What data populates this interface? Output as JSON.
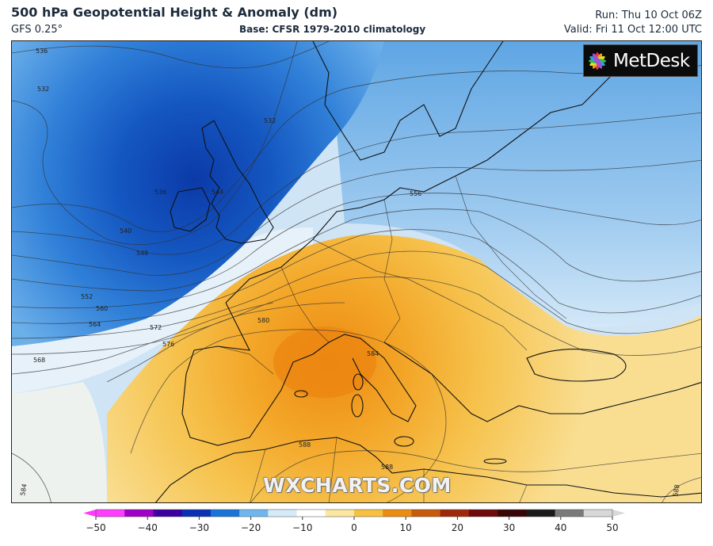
{
  "header": {
    "title": "500 hPa Geopotential Height & Anomaly (dm)",
    "model": "GFS 0.25°",
    "base": "Base: CFSR 1979-2010 climatology",
    "run": "Run: Thu 10 Oct 06Z",
    "valid": "Valid: Fri 11 Oct 12:00 UTC"
  },
  "logo": {
    "text": "MetDesk",
    "icon": "metdesk-star-icon"
  },
  "watermark": "WXCHARTS.COM",
  "contour_labels": [
    "536",
    "532",
    "532",
    "536",
    "540",
    "544",
    "548",
    "552",
    "556",
    "560",
    "564",
    "568",
    "572",
    "576",
    "580",
    "584",
    "588",
    "588",
    "584",
    "588"
  ],
  "colorbar": {
    "ticks": [
      "−50",
      "−40",
      "−30",
      "−20",
      "−10",
      "0",
      "10",
      "20",
      "30",
      "40",
      "50"
    ],
    "colors": [
      "#ff3cff",
      "#a000c8",
      "#3c00a0",
      "#0a30b4",
      "#1a73d6",
      "#6fb6ee",
      "#d6ebf8",
      "#ffffff",
      "#fbe7a0",
      "#f7c040",
      "#ec8c10",
      "#c85a0a",
      "#a0280a",
      "#6e0a0a",
      "#3a0505",
      "#1a1a1a",
      "#7a7a7a",
      "#d8d8d8"
    ]
  }
}
